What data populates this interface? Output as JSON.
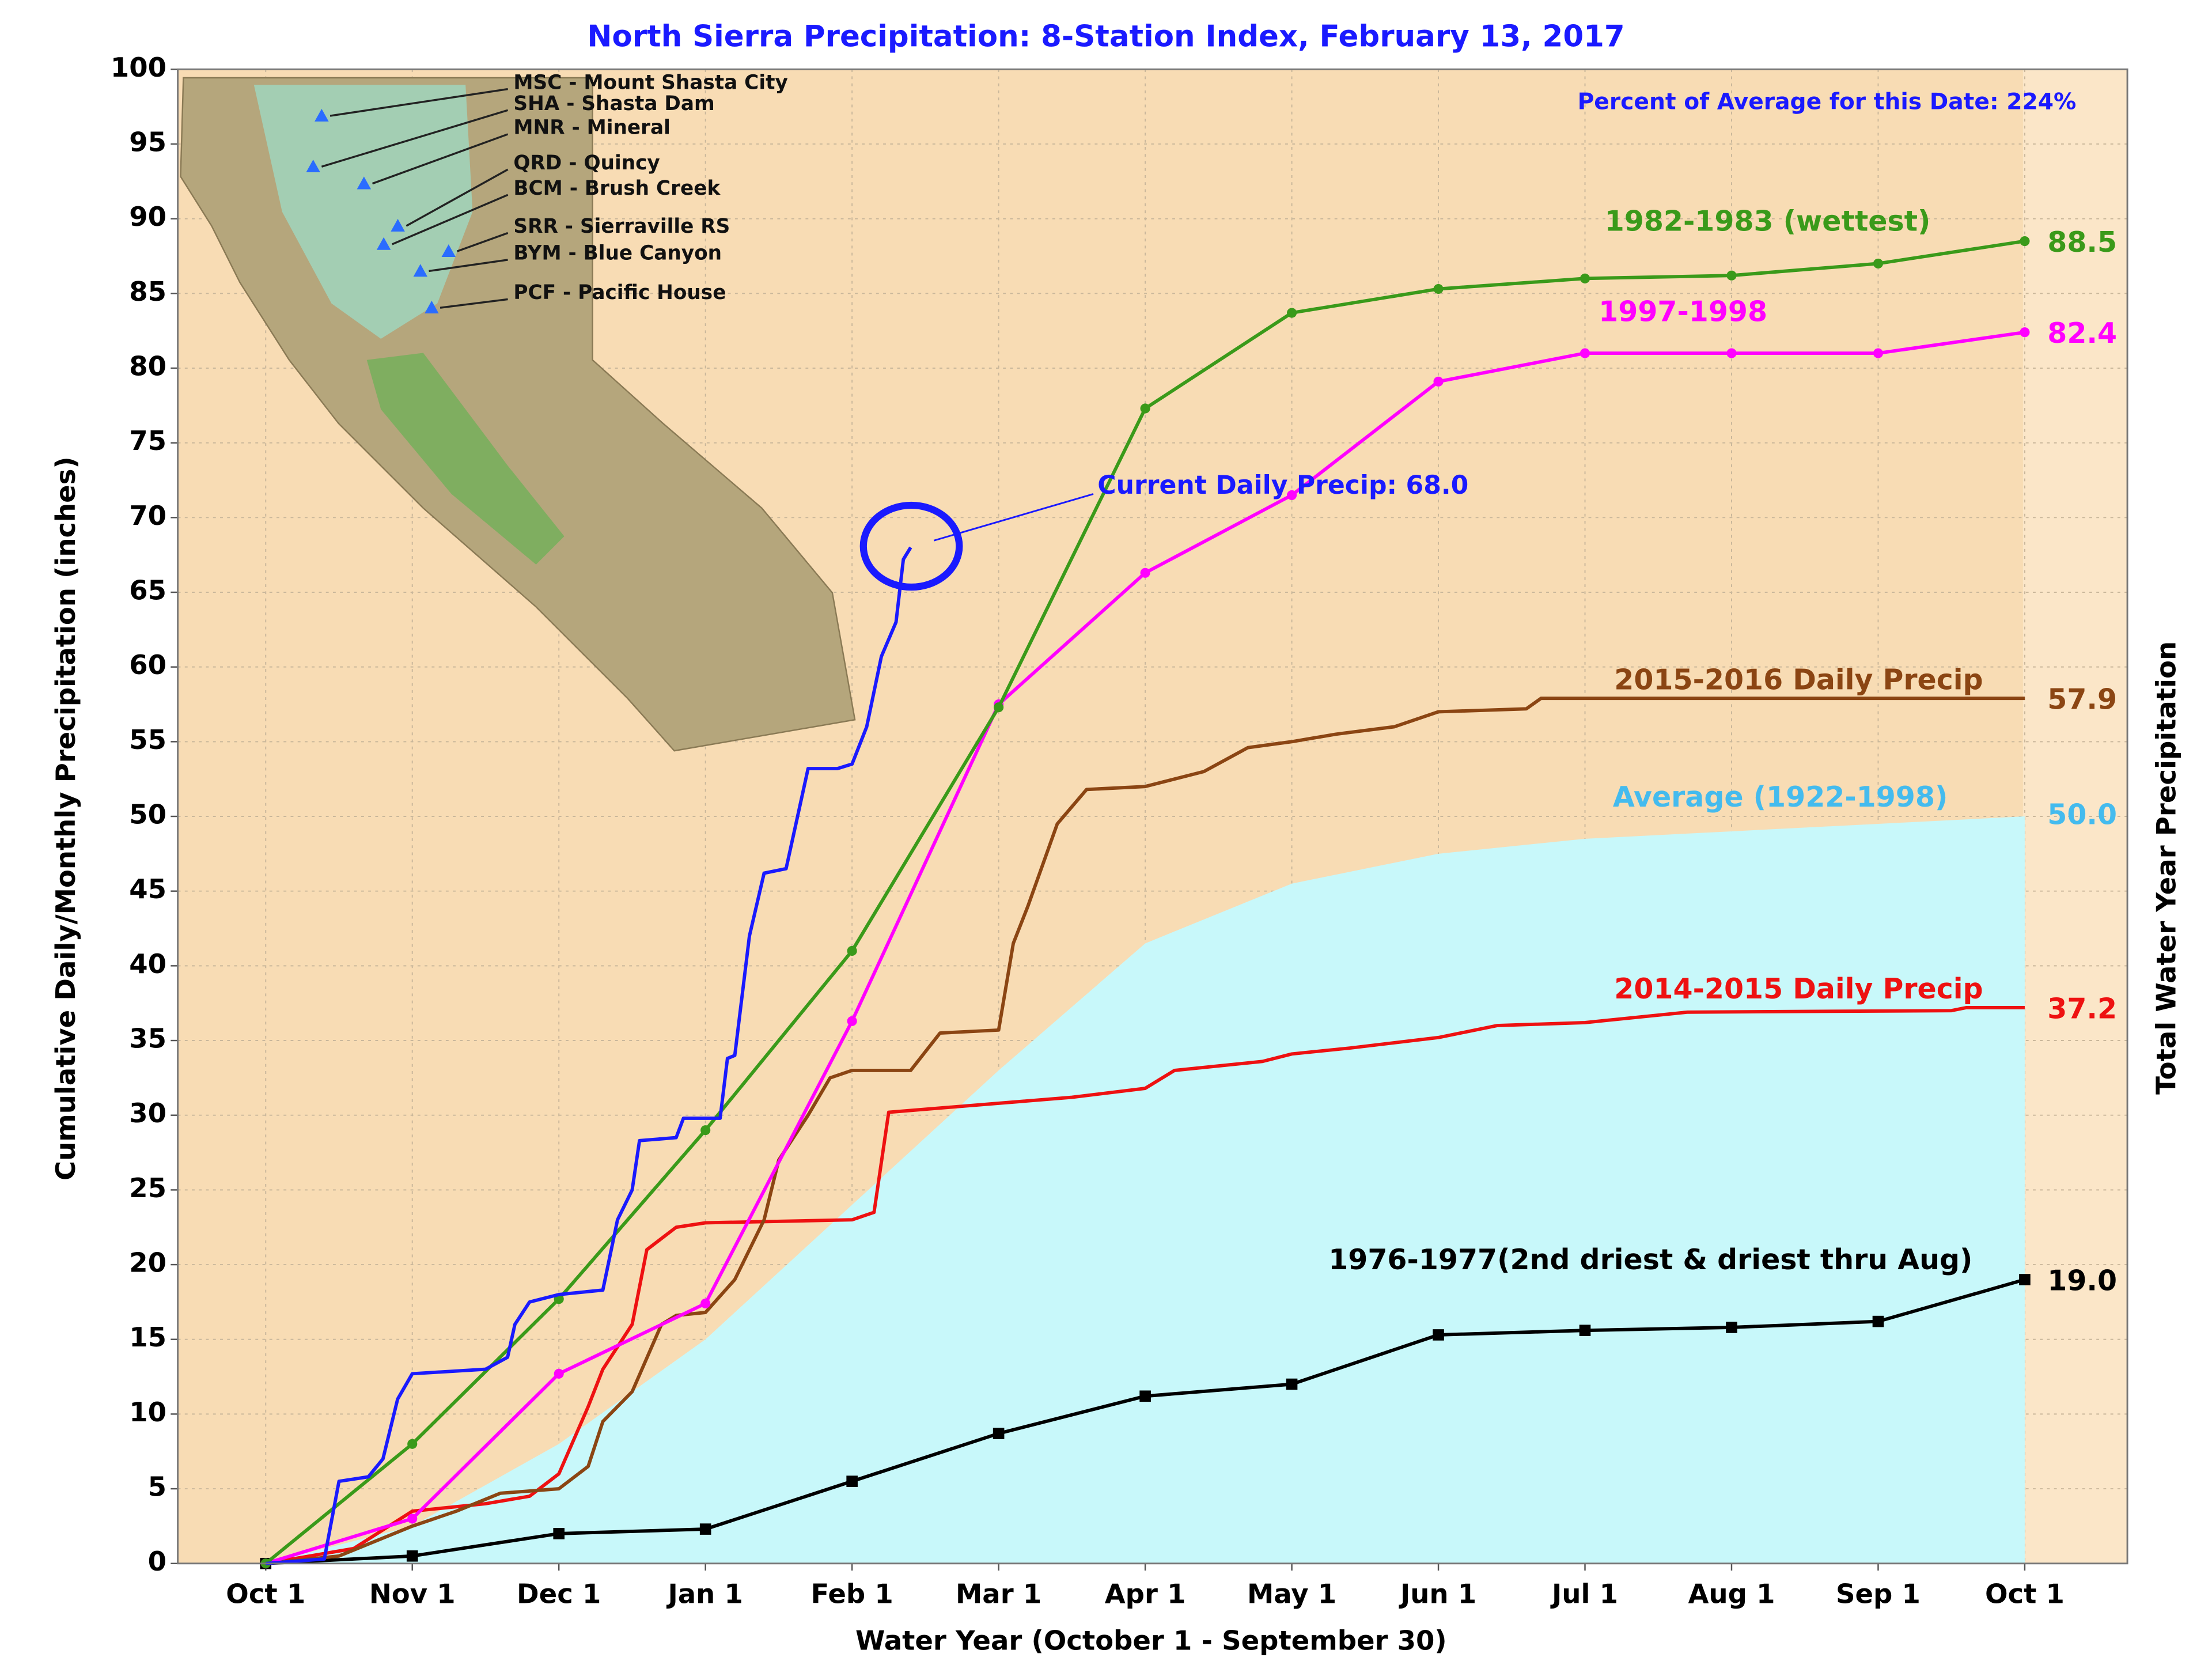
{
  "chart_data": {
    "type": "line",
    "title": "North Sierra Precipitation: 8-Station Index, February 13, 2017",
    "xlabel": "Water Year (October 1 - September 30)",
    "ylabel": "Cumulative Daily/Monthly Precipitation (inches)",
    "y2label": "Total Water Year Precipitation",
    "background": "#f8dcb4",
    "grid": true,
    "xlim": [
      -0.6,
      12.7
    ],
    "ylim": [
      0,
      100
    ],
    "yticks": [
      0,
      5,
      10,
      15,
      20,
      25,
      30,
      35,
      40,
      45,
      50,
      55,
      60,
      65,
      70,
      75,
      80,
      85,
      90,
      95,
      100
    ],
    "xticks": [
      {
        "value": 0,
        "label": "Oct 1"
      },
      {
        "value": 1,
        "label": "Nov 1"
      },
      {
        "value": 2,
        "label": "Dec 1"
      },
      {
        "value": 3,
        "label": "Jan 1"
      },
      {
        "value": 4,
        "label": "Feb 1"
      },
      {
        "value": 5,
        "label": "Mar 1"
      },
      {
        "value": 6,
        "label": "Apr 1"
      },
      {
        "value": 7,
        "label": "May 1"
      },
      {
        "value": 8,
        "label": "Jun 1"
      },
      {
        "value": 9,
        "label": "Jul 1"
      },
      {
        "value": 10,
        "label": "Aug 1"
      },
      {
        "value": 11,
        "label": "Sep 1"
      },
      {
        "value": 12,
        "label": "Oct 1"
      }
    ],
    "annotations": [
      "Percent of Average for this Date: 224%",
      "Current Daily Precip: 68.0"
    ],
    "stations": [
      "MSC - Mount Shasta City",
      "SHA - Shasta Dam",
      "MNR - Mineral",
      "QRD - Quincy",
      "BCM - Brush Creek",
      "SRR - Sierraville RS",
      "BYM - Blue Canyon",
      "PCF - Pacific House"
    ],
    "series": [
      {
        "name": "Average (1922-1998)",
        "style": "area",
        "color": "#c8f8fa",
        "label_color": "#44bbee",
        "x": [
          0,
          1,
          2,
          3,
          4,
          5,
          6,
          7,
          8,
          9,
          10,
          11,
          12
        ],
        "values": [
          0,
          2.5,
          8,
          15,
          24,
          33,
          41.5,
          45.5,
          47.5,
          48.5,
          49,
          49.5,
          50
        ],
        "end_label": "50.0"
      },
      {
        "name": "1976-1977(2nd driest & driest thru Aug)",
        "style": "line",
        "marker": "square",
        "color": "#000000",
        "label_color": "#000000",
        "x": [
          0,
          1,
          2,
          3,
          4,
          5,
          6,
          7,
          8,
          9,
          10,
          11,
          12
        ],
        "values": [
          0,
          0.5,
          2,
          2.3,
          5.5,
          8.7,
          11.2,
          12,
          15.3,
          15.6,
          15.8,
          16.2,
          19
        ],
        "end_label": "19.0"
      },
      {
        "name": "2014-2015 Daily Precip",
        "style": "line",
        "color": "#ee1111",
        "label_color": "#ee1111",
        "x": [
          0,
          0.6,
          1,
          1.5,
          1.8,
          2,
          2.2,
          2.3,
          2.5,
          2.6,
          2.8,
          3,
          4,
          4.15,
          4.25,
          5,
          5.5,
          6,
          6.2,
          6.8,
          7,
          7.4,
          8,
          8.4,
          9,
          9.7,
          11.5,
          11.6,
          12
        ],
        "values": [
          0,
          1,
          3.5,
          4,
          4.5,
          6,
          10.5,
          13,
          16,
          21,
          22.5,
          22.8,
          23,
          23.5,
          30.2,
          30.8,
          31.2,
          31.8,
          33,
          33.6,
          34.1,
          34.5,
          35.2,
          36,
          36.2,
          36.9,
          37,
          37.2,
          37.2
        ],
        "end_label": "37.2"
      },
      {
        "name": "2015-2016 Daily Precip",
        "style": "line",
        "color": "#8b4513",
        "label_color": "#8b4513",
        "x": [
          0,
          0.5,
          1,
          1.3,
          1.6,
          2,
          2.2,
          2.3,
          2.5,
          2.7,
          2.8,
          3,
          3.2,
          3.4,
          3.5,
          3.7,
          3.85,
          4,
          4.4,
          4.6,
          5,
          5.1,
          5.2,
          5.4,
          5.6,
          6,
          6.4,
          6.7,
          7,
          7.3,
          7.7,
          8,
          8.6,
          8.7,
          12
        ],
        "values": [
          0,
          0.5,
          2.5,
          3.5,
          4.7,
          5,
          6.5,
          9.5,
          11.5,
          16,
          16.6,
          16.8,
          19,
          23,
          27,
          30,
          32.5,
          33,
          33,
          35.5,
          35.7,
          41.5,
          44,
          49.5,
          51.8,
          52,
          53,
          54.6,
          55,
          55.5,
          56,
          57,
          57.2,
          57.9,
          57.9
        ],
        "end_label": "57.9"
      },
      {
        "name": "1997-1998",
        "style": "line",
        "marker": "circle",
        "color": "#ff00ff",
        "label_color": "#ff00ff",
        "x": [
          0,
          1,
          2,
          3,
          4,
          5,
          6,
          7,
          8,
          9,
          10,
          11,
          12
        ],
        "values": [
          0,
          3,
          12.7,
          17.4,
          36.3,
          57.5,
          66.3,
          71.5,
          79.1,
          81,
          81,
          81,
          82.4
        ],
        "end_label": "82.4"
      },
      {
        "name": "1982-1983 (wettest)",
        "style": "line",
        "marker": "circle",
        "color": "#3a9a1a",
        "label_color": "#3a9a1a",
        "x": [
          0,
          1,
          2,
          3,
          4,
          5,
          6,
          7,
          8,
          9,
          10,
          11,
          12
        ],
        "values": [
          0,
          8,
          17.7,
          29,
          41,
          57.3,
          77.3,
          83.7,
          85.3,
          86,
          86.2,
          87,
          88.5
        ],
        "end_label": "88.5"
      },
      {
        "style": "line",
        "color": "#1a1aff",
        "x": [
          0,
          0.4,
          0.5,
          0.7,
          0.8,
          0.9,
          1,
          1.5,
          1.65,
          1.7,
          1.8,
          2,
          2.3,
          2.4,
          2.5,
          2.55,
          2.8,
          2.85,
          3.1,
          3.15,
          3.2,
          3.3,
          3.4,
          3.55,
          3.7,
          3.9,
          4,
          4.1,
          4.2,
          4.3,
          4.35,
          4.4
        ],
        "values": [
          0,
          0.3,
          5.5,
          5.8,
          7,
          11,
          12.7,
          13,
          13.8,
          16,
          17.5,
          18,
          18.3,
          23,
          25,
          28.3,
          28.5,
          29.8,
          29.8,
          33.8,
          34,
          42,
          46.2,
          46.5,
          53.2,
          53.2,
          53.5,
          56,
          60.7,
          63,
          67.2,
          68
        ]
      }
    ]
  }
}
